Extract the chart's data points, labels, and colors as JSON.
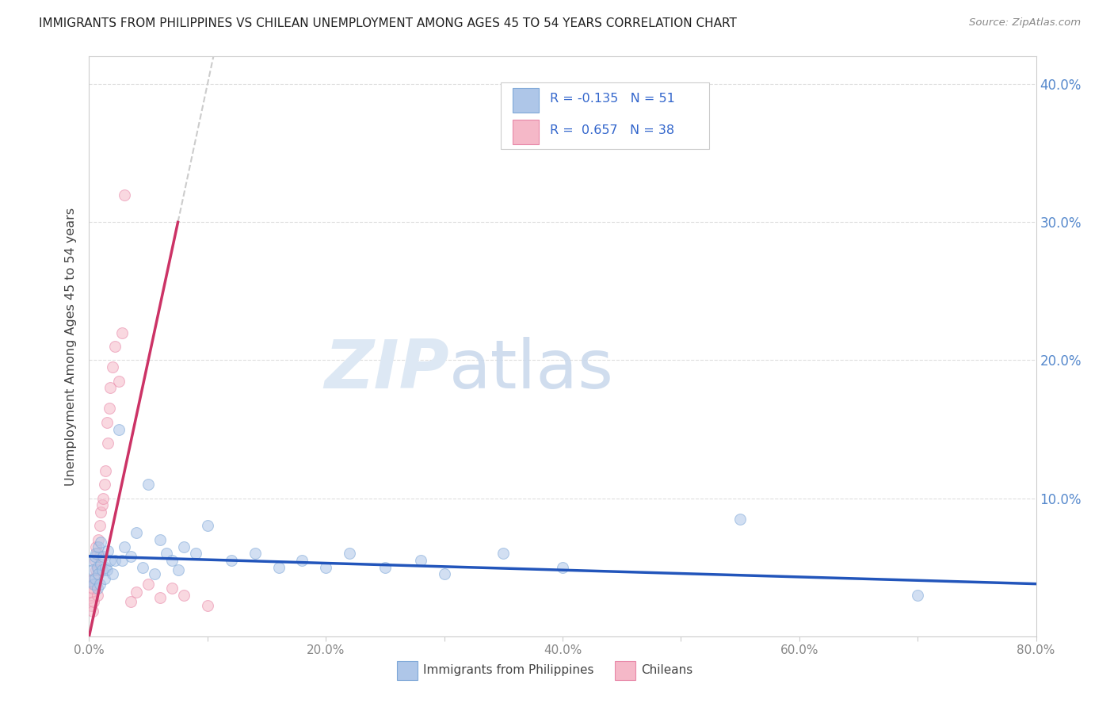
{
  "title": "IMMIGRANTS FROM PHILIPPINES VS CHILEAN UNEMPLOYMENT AMONG AGES 45 TO 54 YEARS CORRELATION CHART",
  "source": "Source: ZipAtlas.com",
  "ylabel": "Unemployment Among Ages 45 to 54 years",
  "xlim": [
    0.0,
    0.8
  ],
  "ylim": [
    0.0,
    0.42
  ],
  "xticks": [
    0.0,
    0.1,
    0.2,
    0.3,
    0.4,
    0.5,
    0.6,
    0.7,
    0.8
  ],
  "yticks": [
    0.0,
    0.1,
    0.2,
    0.3,
    0.4
  ],
  "ytick_labels": [
    "",
    "10.0%",
    "20.0%",
    "30.0%",
    "40.0%"
  ],
  "xtick_labels": [
    "0.0%",
    "",
    "20.0%",
    "",
    "40.0%",
    "",
    "60.0%",
    "",
    "80.0%"
  ],
  "legend_R_blue": "-0.135",
  "legend_N_blue": "51",
  "legend_R_pink": "0.657",
  "legend_N_pink": "38",
  "legend_label_blue": "Immigrants from Philippines",
  "legend_label_pink": "Chileans",
  "blue_color": "#aec6e8",
  "pink_color": "#f5b8c8",
  "blue_edge_color": "#7fa8d8",
  "pink_edge_color": "#e888a8",
  "blue_line_color": "#2255bb",
  "pink_line_color": "#cc3366",
  "dash_line_color": "#cccccc",
  "scatter_alpha": 0.55,
  "marker_size": 100,
  "title_color": "#222222",
  "ylabel_color": "#444444",
  "tick_color": "#888888",
  "tick_color_right": "#5588cc",
  "watermark_color": "#dde8f4",
  "grid_color": "#dddddd",
  "blue_x": [
    0.001,
    0.002,
    0.003,
    0.004,
    0.005,
    0.005,
    0.006,
    0.007,
    0.007,
    0.008,
    0.008,
    0.009,
    0.01,
    0.01,
    0.011,
    0.012,
    0.013,
    0.014,
    0.015,
    0.016,
    0.018,
    0.02,
    0.022,
    0.025,
    0.028,
    0.03,
    0.035,
    0.04,
    0.045,
    0.05,
    0.055,
    0.06,
    0.065,
    0.07,
    0.075,
    0.08,
    0.09,
    0.1,
    0.12,
    0.14,
    0.16,
    0.18,
    0.2,
    0.22,
    0.25,
    0.28,
    0.3,
    0.35,
    0.4,
    0.55,
    0.7
  ],
  "blue_y": [
    0.04,
    0.055,
    0.048,
    0.038,
    0.058,
    0.042,
    0.06,
    0.05,
    0.035,
    0.065,
    0.045,
    0.038,
    0.052,
    0.068,
    0.048,
    0.058,
    0.042,
    0.05,
    0.048,
    0.062,
    0.055,
    0.045,
    0.055,
    0.15,
    0.055,
    0.065,
    0.058,
    0.075,
    0.05,
    0.11,
    0.045,
    0.07,
    0.06,
    0.055,
    0.048,
    0.065,
    0.06,
    0.08,
    0.055,
    0.06,
    0.05,
    0.055,
    0.05,
    0.06,
    0.05,
    0.055,
    0.045,
    0.06,
    0.05,
    0.085,
    0.03
  ],
  "pink_x": [
    0.001,
    0.002,
    0.002,
    0.003,
    0.003,
    0.004,
    0.004,
    0.005,
    0.005,
    0.006,
    0.006,
    0.007,
    0.007,
    0.008,
    0.008,
    0.009,
    0.009,
    0.01,
    0.011,
    0.012,
    0.013,
    0.014,
    0.015,
    0.016,
    0.017,
    0.018,
    0.02,
    0.022,
    0.025,
    0.028,
    0.03,
    0.035,
    0.04,
    0.05,
    0.06,
    0.07,
    0.08,
    0.1
  ],
  "pink_y": [
    0.028,
    0.032,
    0.022,
    0.035,
    0.018,
    0.042,
    0.025,
    0.055,
    0.038,
    0.065,
    0.048,
    0.06,
    0.03,
    0.07,
    0.048,
    0.08,
    0.058,
    0.09,
    0.095,
    0.1,
    0.11,
    0.12,
    0.155,
    0.14,
    0.165,
    0.18,
    0.195,
    0.21,
    0.185,
    0.22,
    0.32,
    0.025,
    0.032,
    0.038,
    0.028,
    0.035,
    0.03,
    0.022
  ],
  "pink_line_x_end": 0.075,
  "blue_line_slope": -0.025,
  "blue_line_intercept": 0.058
}
